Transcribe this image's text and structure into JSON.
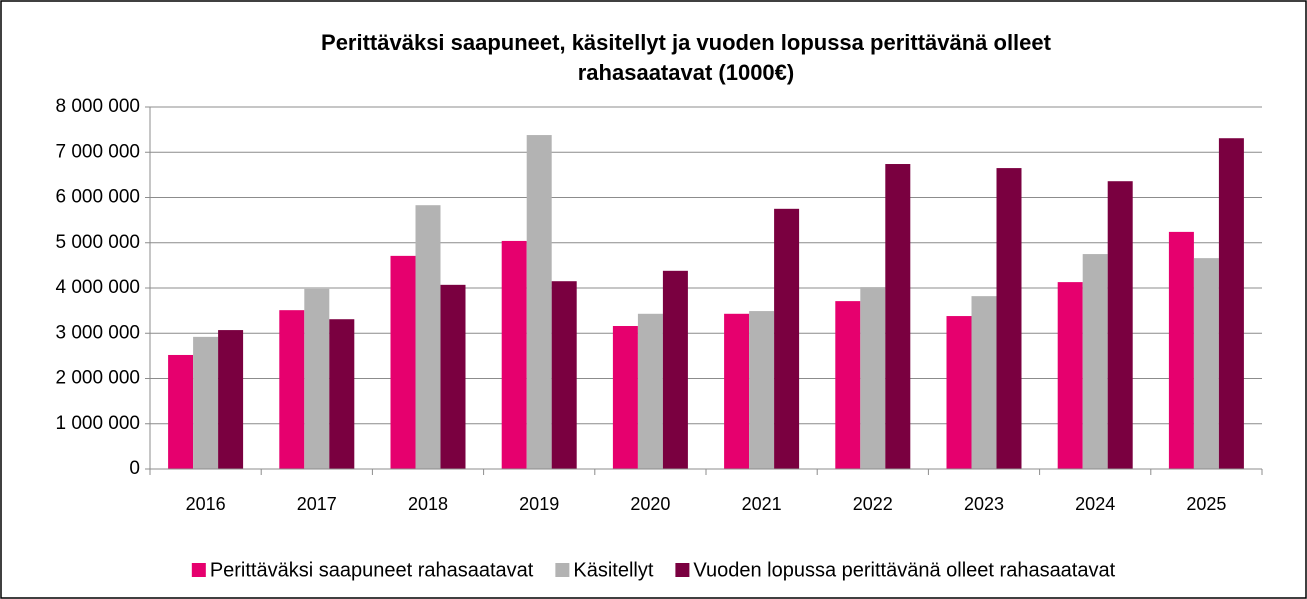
{
  "chart_data": {
    "type": "bar",
    "title": [
      "Perittäväksi saapuneet, käsitellyt ja vuoden lopussa perittävänä olleet",
      "rahasaatavat (1000€)"
    ],
    "categories": [
      "2016",
      "2017",
      "2018",
      "2019",
      "2020",
      "2021",
      "2022",
      "2023",
      "2024",
      "2025"
    ],
    "series": [
      {
        "name": "Perittäväksi saapuneet rahasaatavat",
        "color": "#e6006e",
        "values": [
          2520000,
          3510000,
          4710000,
          5040000,
          3160000,
          3430000,
          3710000,
          3380000,
          4130000,
          5240000
        ]
      },
      {
        "name": "Käsitellyt",
        "color": "#b3b3b3",
        "values": [
          2920000,
          3980000,
          5830000,
          7380000,
          3430000,
          3490000,
          4020000,
          3820000,
          4750000,
          4660000
        ]
      },
      {
        "name": "Vuoden lopussa perittävänä olleet rahasaatavat",
        "color": "#7a0040",
        "values": [
          3070000,
          3310000,
          4070000,
          4150000,
          4380000,
          5750000,
          6740000,
          6650000,
          6360000,
          7310000
        ]
      }
    ],
    "ylim": [
      0,
      8000000
    ],
    "yticks": [
      0,
      {
        "value": 1000000,
        "label": "1 000 000"
      },
      {
        "value": 2000000,
        "label": "2 000 000"
      },
      {
        "value": 3000000,
        "label": "3 000 000"
      },
      {
        "value": 4000000,
        "label": "4 000 000"
      },
      {
        "value": 5000000,
        "label": "5 000 000"
      },
      {
        "value": 6000000,
        "label": "6 000 000"
      },
      {
        "value": 7000000,
        "label": "7 000 000"
      },
      {
        "value": 8000000,
        "label": "8 000 000"
      }
    ],
    "grid": true,
    "legend": "bottom"
  }
}
